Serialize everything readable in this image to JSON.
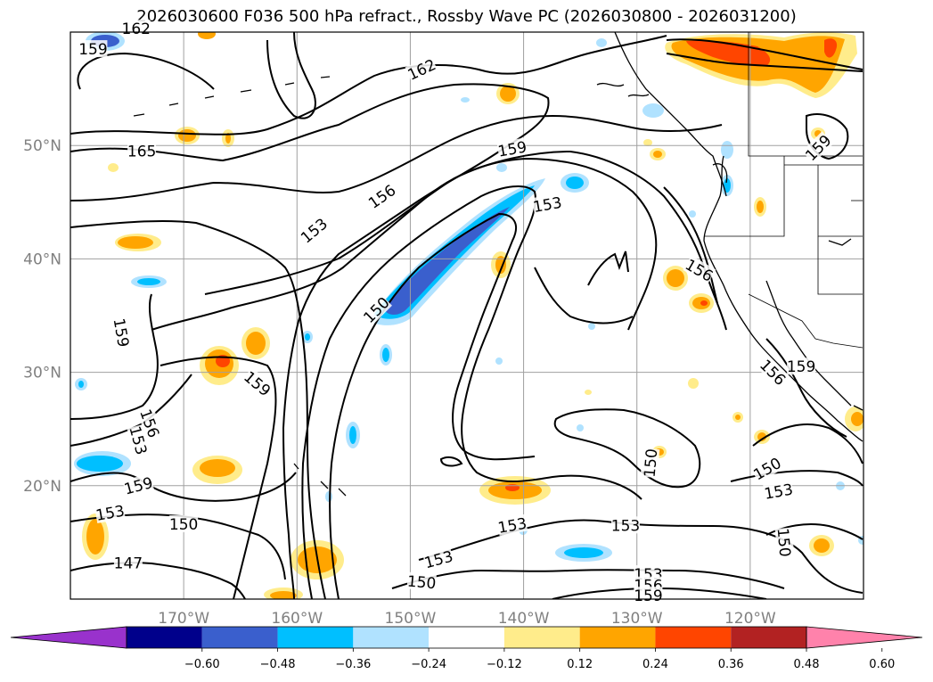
{
  "title": "2026030600 F036 500 hPa refract., Rossby Wave PC (2026030800 - 2026031200)",
  "map": {
    "lon_range": [
      -180,
      -110
    ],
    "lat_range": [
      10,
      60
    ],
    "lon_ticks": [
      {
        "lon": -170,
        "label": "170°W"
      },
      {
        "lon": -160,
        "label": "160°W"
      },
      {
        "lon": -150,
        "label": "150°W"
      },
      {
        "lon": -140,
        "label": "140°W"
      },
      {
        "lon": -130,
        "label": "130°W"
      },
      {
        "lon": -120,
        "label": "120°W"
      }
    ],
    "lat_ticks": [
      {
        "lat": 20,
        "label": "20°N"
      },
      {
        "lat": 30,
        "label": "30°N"
      },
      {
        "lat": 40,
        "label": "40°N"
      },
      {
        "lat": 50,
        "label": "50°N"
      }
    ],
    "grid": true
  },
  "colorbar": {
    "extend": "both",
    "colors": [
      "#9932CC",
      "#00008B",
      "#3A5FCD",
      "#00BFFF",
      "#B0E2FF",
      "#FFFFFF",
      "#FFEC8B",
      "#FFA500",
      "#FF4500",
      "#B22222",
      "#FF82AB"
    ],
    "ticks": [
      "−0.60",
      "−0.48",
      "−0.36",
      "−0.24",
      "−0.12",
      "0.12",
      "0.24",
      "0.36",
      "0.48",
      "0.60"
    ]
  },
  "contour_labels": [
    {
      "text": "162",
      "lon": -174.2,
      "lat": 60.3,
      "rot": 0
    },
    {
      "text": "159",
      "lon": -178.0,
      "lat": 58.5,
      "rot": 0
    },
    {
      "text": "162",
      "lon": -149.0,
      "lat": 56.7,
      "rot": -25
    },
    {
      "text": "165",
      "lon": -173.7,
      "lat": 49.5,
      "rot": 0
    },
    {
      "text": "159",
      "lon": -141.0,
      "lat": 49.7,
      "rot": -10
    },
    {
      "text": "156",
      "lon": -152.5,
      "lat": 45.5,
      "rot": -35
    },
    {
      "text": "153",
      "lon": -158.5,
      "lat": 42.5,
      "rot": -40
    },
    {
      "text": "153",
      "lon": -137.9,
      "lat": 44.8,
      "rot": -10
    },
    {
      "text": "159",
      "lon": -114.0,
      "lat": 49.8,
      "rot": -45
    },
    {
      "text": "156",
      "lon": -124.5,
      "lat": 39.0,
      "rot": 30
    },
    {
      "text": "150",
      "lon": -153.0,
      "lat": 35.5,
      "rot": -45
    },
    {
      "text": "159",
      "lon": -175.5,
      "lat": 33.5,
      "rot": 80
    },
    {
      "text": "159",
      "lon": -163.5,
      "lat": 29.0,
      "rot": 40
    },
    {
      "text": "156",
      "lon": -118.0,
      "lat": 30.0,
      "rot": 45
    },
    {
      "text": "159",
      "lon": -115.5,
      "lat": 30.5,
      "rot": 0
    },
    {
      "text": "156",
      "lon": -173.0,
      "lat": 25.5,
      "rot": 70
    },
    {
      "text": "153",
      "lon": -174.0,
      "lat": 24.0,
      "rot": 75
    },
    {
      "text": "150",
      "lon": -128.8,
      "lat": 22.0,
      "rot": -85
    },
    {
      "text": "150",
      "lon": -118.5,
      "lat": 21.5,
      "rot": -30
    },
    {
      "text": "159",
      "lon": -174.0,
      "lat": 20.0,
      "rot": -15
    },
    {
      "text": "153",
      "lon": -117.5,
      "lat": 19.5,
      "rot": -10
    },
    {
      "text": "150",
      "lon": -170.0,
      "lat": 16.6,
      "rot": 0
    },
    {
      "text": "153",
      "lon": -176.5,
      "lat": 17.6,
      "rot": -10
    },
    {
      "text": "153",
      "lon": -141.0,
      "lat": 16.5,
      "rot": -10
    },
    {
      "text": "153",
      "lon": -131.0,
      "lat": 16.5,
      "rot": 0
    },
    {
      "text": "150",
      "lon": -117.0,
      "lat": 15.0,
      "rot": 85
    },
    {
      "text": "153",
      "lon": -147.5,
      "lat": 13.5,
      "rot": -15
    },
    {
      "text": "147",
      "lon": -174.9,
      "lat": 13.2,
      "rot": 0
    },
    {
      "text": "150",
      "lon": -149.0,
      "lat": 11.5,
      "rot": 5
    },
    {
      "text": "153",
      "lon": -129.0,
      "lat": 12.2,
      "rot": 0
    },
    {
      "text": "156",
      "lon": -129.0,
      "lat": 11.2,
      "rot": 0
    },
    {
      "text": "159",
      "lon": -129.0,
      "lat": 10.3,
      "rot": 0
    }
  ]
}
